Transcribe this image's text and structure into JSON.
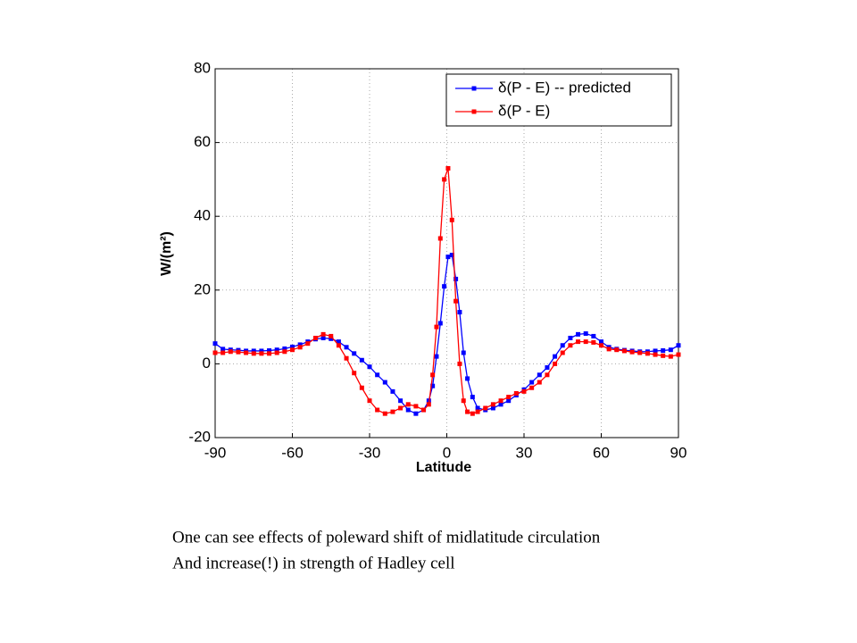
{
  "chart_data": {
    "type": "line",
    "x": [
      -90,
      -87,
      -84,
      -81,
      -78,
      -75,
      -72,
      -69,
      -66,
      -63,
      -60,
      -57,
      -54,
      -51,
      -48,
      -45,
      -42,
      -39,
      -36,
      -33,
      -30,
      -27,
      -24,
      -21,
      -18,
      -15,
      -12,
      -9,
      -7,
      -5.5,
      -4,
      -2.5,
      -1,
      0.5,
      2,
      3.5,
      5,
      6.5,
      8,
      10,
      12,
      15,
      18,
      21,
      24,
      27,
      30,
      33,
      36,
      39,
      42,
      45,
      48,
      51,
      54,
      57,
      60,
      63,
      66,
      69,
      72,
      75,
      78,
      81,
      84,
      87,
      90
    ],
    "series": [
      {
        "name": "δ(P - E) -- predicted",
        "color": "#0000ff",
        "values": [
          5.5,
          4,
          3.8,
          3.7,
          3.5,
          3.5,
          3.5,
          3.6,
          3.8,
          4.1,
          4.6,
          5.2,
          6,
          6.7,
          7,
          6.8,
          6,
          4.5,
          2.8,
          1,
          -0.8,
          -3,
          -5,
          -7.5,
          -10,
          -12.5,
          -13.5,
          -12.5,
          -10,
          -6,
          2,
          11,
          21,
          29,
          29.5,
          23,
          14,
          3,
          -4,
          -9,
          -12,
          -12.5,
          -12,
          -11,
          -10,
          -8.5,
          -7,
          -5,
          -3,
          -1,
          2,
          5,
          7,
          8,
          8.2,
          7.5,
          6,
          4.5,
          4,
          3.7,
          3.5,
          3.3,
          3.3,
          3.5,
          3.6,
          3.8,
          5
        ]
      },
      {
        "name": "δ(P - E)",
        "color": "#ff0000",
        "values": [
          3,
          3,
          3.3,
          3.2,
          3,
          2.8,
          2.8,
          2.8,
          3,
          3.3,
          3.8,
          4.5,
          5.5,
          7,
          8,
          7.5,
          5,
          1.5,
          -2.5,
          -6.5,
          -10,
          -12.5,
          -13.5,
          -13,
          -12,
          -11,
          -11.5,
          -12.5,
          -11,
          -3,
          10,
          34,
          50,
          53,
          39,
          17,
          0,
          -10,
          -13,
          -13.5,
          -13,
          -12,
          -11,
          -10,
          -9,
          -8,
          -7.5,
          -6.5,
          -5,
          -3,
          0,
          3,
          5,
          6,
          6,
          5.8,
          5,
          4,
          3.8,
          3.5,
          3.2,
          3,
          2.8,
          2.5,
          2.2,
          2,
          2.5
        ]
      }
    ],
    "xlabel": "Latitude",
    "ylabel": "W/(m²)",
    "xlim": [
      -90,
      90
    ],
    "xticks": [
      -90,
      -60,
      -30,
      0,
      30,
      60,
      90
    ],
    "ylim": [
      -20,
      80
    ],
    "yticks": [
      -20,
      0,
      20,
      40,
      60,
      80
    ],
    "grid": true,
    "legend": "upper right"
  },
  "caption": [
    "One can see effects of poleward shift of midlatitude circulation",
    "And increase(!) in strength of Hadley cell"
  ]
}
